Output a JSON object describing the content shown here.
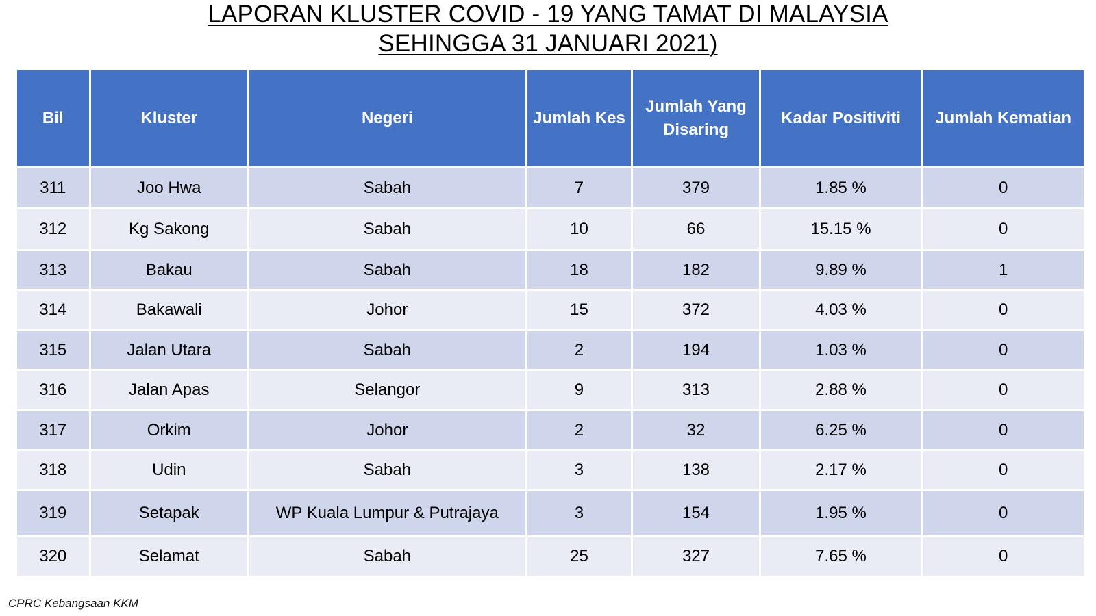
{
  "title": {
    "line1": "LAPORAN KLUSTER COVID - 19 YANG TAMAT DI MALAYSIA",
    "line2": "SEHINGGA 31 JANUARI 2021)"
  },
  "table": {
    "headers": [
      "Bil",
      "Kluster",
      "Negeri",
      "Jumlah Kes",
      "Jumlah Yang Disaring",
      "Kadar Positiviti",
      "Jumlah Kematian"
    ],
    "rows": [
      [
        "311",
        "Joo Hwa",
        "Sabah",
        "7",
        "379",
        "1.85 %",
        "0"
      ],
      [
        "312",
        "Kg Sakong",
        "Sabah",
        "10",
        "66",
        "15.15 %",
        "0"
      ],
      [
        "313",
        "Bakau",
        "Sabah",
        "18",
        "182",
        "9.89 %",
        "1"
      ],
      [
        "314",
        "Bakawali",
        "Johor",
        "15",
        "372",
        "4.03 %",
        "0"
      ],
      [
        "315",
        "Jalan Utara",
        "Sabah",
        "2",
        "194",
        "1.03 %",
        "0"
      ],
      [
        "316",
        "Jalan Apas",
        "Selangor",
        "9",
        "313",
        "2.88 %",
        "0"
      ],
      [
        "317",
        "Orkim",
        "Johor",
        "2",
        "32",
        "6.25 %",
        "0"
      ],
      [
        "318",
        "Udin",
        "Sabah",
        "3",
        "138",
        "2.17 %",
        "0"
      ],
      [
        "319",
        "Setapak",
        "WP Kuala Lumpur & Putrajaya",
        "3",
        "154",
        "1.95 %",
        "0"
      ],
      [
        "320",
        "Selamat",
        "Sabah",
        "25",
        "327",
        "7.65 %",
        "0"
      ]
    ]
  },
  "footer": "CPRC Kebangsaan KKM",
  "colors": {
    "header_bg": "#4472c4",
    "row_dark": "#cfd5ea",
    "row_light": "#e9ebf5"
  }
}
